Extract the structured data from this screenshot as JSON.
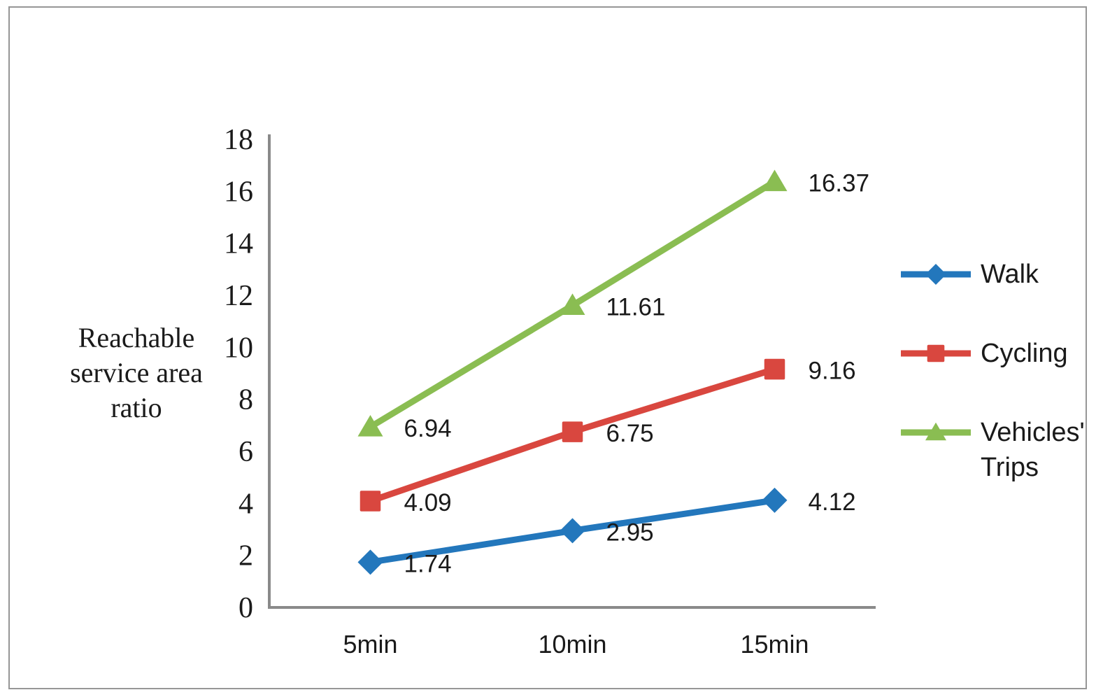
{
  "figure": {
    "background": "#ffffff",
    "border_color": "#969696"
  },
  "chart_data": {
    "type": "line",
    "title": "",
    "categories": [
      "5min",
      "10min",
      "15min"
    ],
    "series": [
      {
        "name": "Walk",
        "marker": "diamond",
        "color": "#2377BC",
        "values": [
          1.74,
          2.95,
          4.12
        ]
      },
      {
        "name": "Cycling",
        "marker": "square",
        "color": "#D9473F",
        "values": [
          4.09,
          6.75,
          9.16
        ]
      },
      {
        "name": "Vehicles' Trips",
        "marker": "triangle",
        "color": "#8ABD52",
        "values": [
          6.94,
          11.61,
          16.37
        ]
      }
    ],
    "xlabel": "",
    "ylabel": "Reachable service area ratio",
    "ylim": [
      0,
      18
    ],
    "ytick_step": 2,
    "yticks": [
      0,
      2,
      4,
      6,
      8,
      10,
      12,
      14,
      16,
      18
    ],
    "grid": false,
    "legend_position": "right",
    "data_labels": true,
    "axis_color": "#8a8a8a",
    "text_color": "#1a1a1a"
  }
}
